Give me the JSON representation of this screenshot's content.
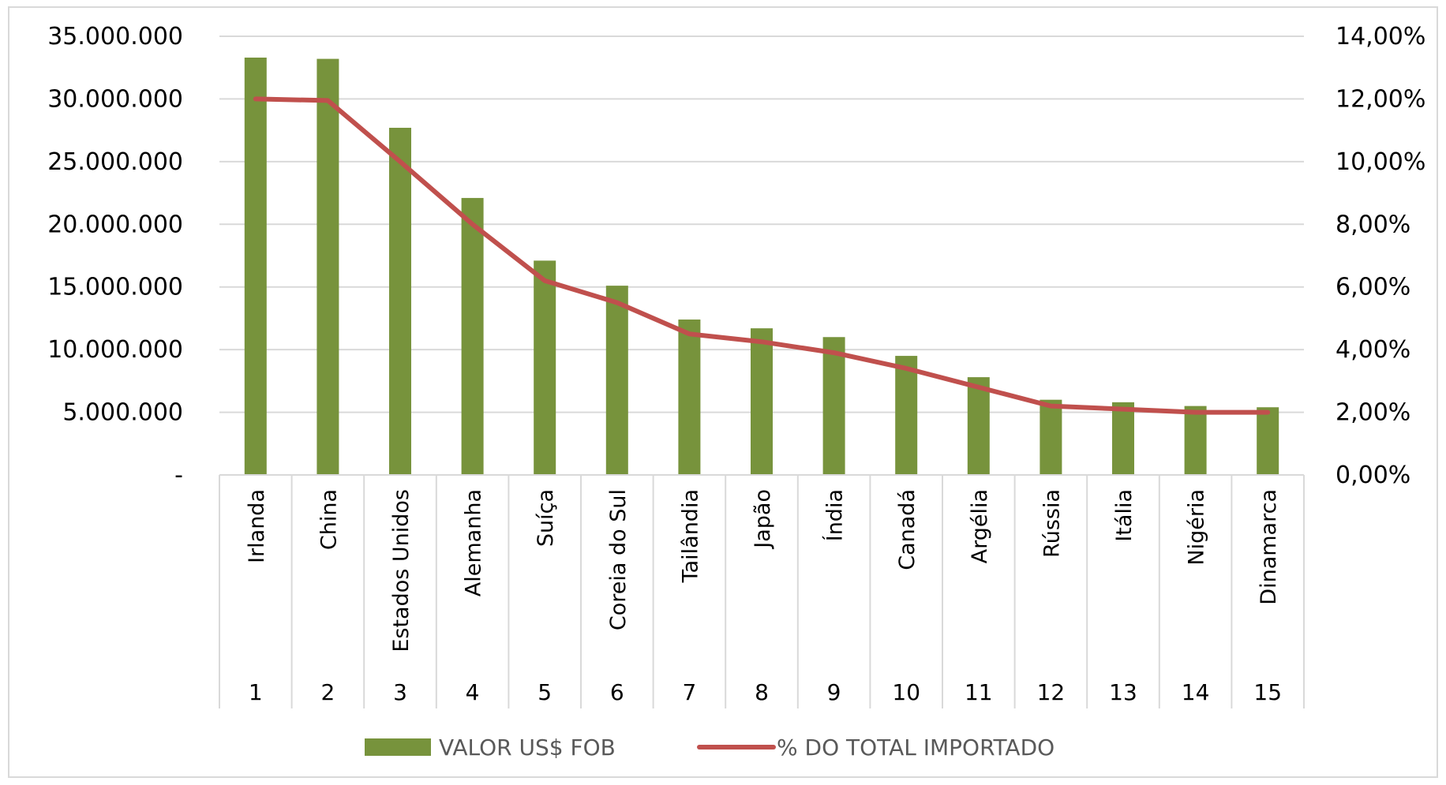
{
  "chart_data": {
    "type": "bar",
    "categories": [
      "Irlanda",
      "China",
      "Estados Unidos",
      "Alemanha",
      "Suíça",
      "Coreia do Sul",
      "Tailândia",
      "Japão",
      "Índia",
      "Canadá",
      "Argélia",
      "Rússia",
      "Itália",
      "Nigéria",
      "Dinamarca"
    ],
    "ranks": [
      "1",
      "2",
      "3",
      "4",
      "5",
      "6",
      "7",
      "8",
      "9",
      "10",
      "11",
      "12",
      "13",
      "14",
      "15"
    ],
    "series": [
      {
        "name": "VALOR US$ FOB",
        "type": "bar",
        "axis": "left",
        "color": "#77933c",
        "values": [
          33300000,
          33200000,
          27700000,
          22100000,
          17100000,
          15100000,
          12400000,
          11700000,
          11000000,
          9500000,
          7800000,
          6000000,
          5800000,
          5500000,
          5400000
        ]
      },
      {
        "name": "% DO TOTAL IMPORTADO",
        "type": "line",
        "axis": "right",
        "color": "#c0504d",
        "values": [
          12.0,
          11.95,
          10.0,
          8.0,
          6.2,
          5.5,
          4.5,
          4.25,
          3.9,
          3.4,
          2.8,
          2.2,
          2.1,
          2.0,
          2.0
        ]
      }
    ],
    "y_left": {
      "ylim": [
        0,
        35000000
      ],
      "ticks": [
        0,
        5000000,
        10000000,
        15000000,
        20000000,
        25000000,
        30000000,
        35000000
      ],
      "tick_labels": [
        "-",
        "5.000.000",
        "10.000.000",
        "15.000.000",
        "20.000.000",
        "25.000.000",
        "30.000.000",
        "35.000.000"
      ]
    },
    "y_right": {
      "ylim": [
        0,
        14
      ],
      "ticks": [
        0,
        2,
        4,
        6,
        8,
        10,
        12,
        14
      ],
      "tick_labels": [
        "0,00%",
        "2,00%",
        "4,00%",
        "6,00%",
        "8,00%",
        "10,00%",
        "12,00%",
        "14,00%"
      ]
    },
    "grid": true,
    "legend_position": "bottom",
    "title": "",
    "xlabel": "",
    "ylabel": ""
  }
}
